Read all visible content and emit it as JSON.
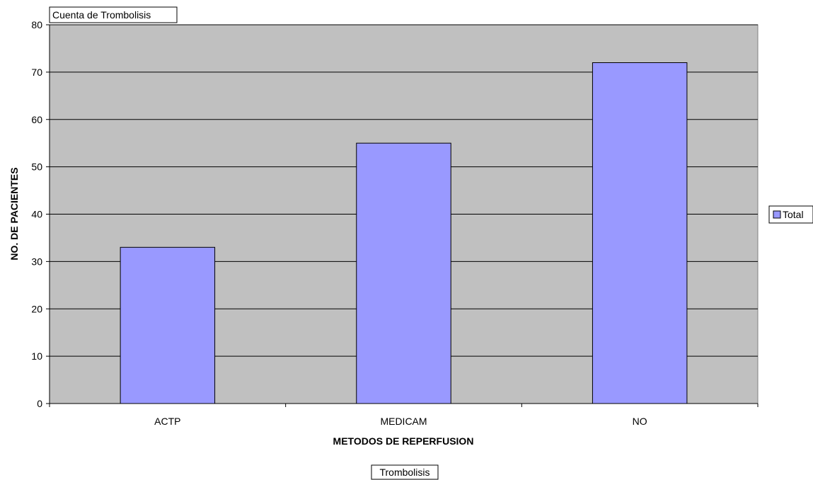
{
  "pivot": {
    "data_field_label": "Cuenta de Trombolisis",
    "page_field_label": "Trombolisis"
  },
  "colors": {
    "plot_background": "#c0c0c0",
    "bar_fill": "#9999ff",
    "bar_stroke": "#000000"
  },
  "chart_data": {
    "type": "bar",
    "categories": [
      "ACTP",
      "MEDICAM",
      "NO"
    ],
    "series": [
      {
        "name": "Total",
        "values": [
          33,
          55,
          72
        ]
      }
    ],
    "title": "",
    "xlabel": "METODOS DE REPERFUSION",
    "ylabel": "NO. DE PACIENTES",
    "ylim": [
      0,
      80
    ],
    "yticks": [
      0,
      10,
      20,
      30,
      40,
      50,
      60,
      70,
      80
    ],
    "grid": true,
    "legend_position": "right"
  }
}
